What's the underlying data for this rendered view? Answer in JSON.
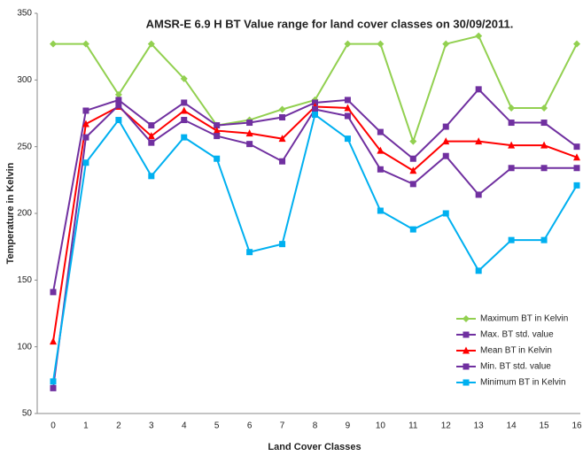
{
  "chart_data": {
    "type": "line",
    "title": "AMSR-E 6.9 H BT Value range for land cover classes on 30/09/2011.",
    "x_label": "Land Cover Classes",
    "y_label": "Temperature in Kelvin",
    "categories": [
      "0",
      "1",
      "2",
      "3",
      "4",
      "5",
      "6",
      "7",
      "8",
      "9",
      "10",
      "11",
      "12",
      "13",
      "14",
      "15",
      "16"
    ],
    "ylim": [
      50,
      350
    ],
    "yticks": [
      50,
      100,
      150,
      200,
      250,
      300,
      350
    ],
    "grid": false,
    "legend": "lower right",
    "series": [
      {
        "name": "Maximum BT in Kelvin",
        "color": "#92d050",
        "marker": "diamond",
        "values": [
          327,
          327,
          289,
          327,
          301,
          266,
          270,
          278,
          285,
          327,
          327,
          254,
          327,
          333,
          279,
          279,
          327
        ]
      },
      {
        "name": "Max. BT std. value",
        "color": "#7030a0",
        "marker": "square",
        "values": [
          141,
          277,
          285,
          266,
          283,
          266,
          268,
          272,
          283,
          285,
          261,
          241,
          265,
          293,
          268,
          268,
          250
        ]
      },
      {
        "name": "Mean BT in Kelvin",
        "color": "#ff0000",
        "marker": "triangle",
        "values": [
          104,
          267,
          280,
          258,
          277,
          262,
          260,
          256,
          280,
          279,
          247,
          232,
          254,
          254,
          251,
          251,
          242
        ]
      },
      {
        "name": "Min. BT std. value",
        "color": "#7030a0",
        "marker": "square",
        "values": [
          69,
          257,
          281,
          253,
          270,
          258,
          252,
          239,
          278,
          273,
          233,
          222,
          243,
          214,
          234,
          234,
          234
        ]
      },
      {
        "name": "Minimum BT in Kelvin",
        "color": "#00b0f0",
        "marker": "square",
        "values": [
          74,
          238,
          270,
          228,
          257,
          241,
          171,
          177,
          274,
          256,
          202,
          188,
          200,
          157,
          180,
          180,
          221
        ]
      }
    ]
  }
}
